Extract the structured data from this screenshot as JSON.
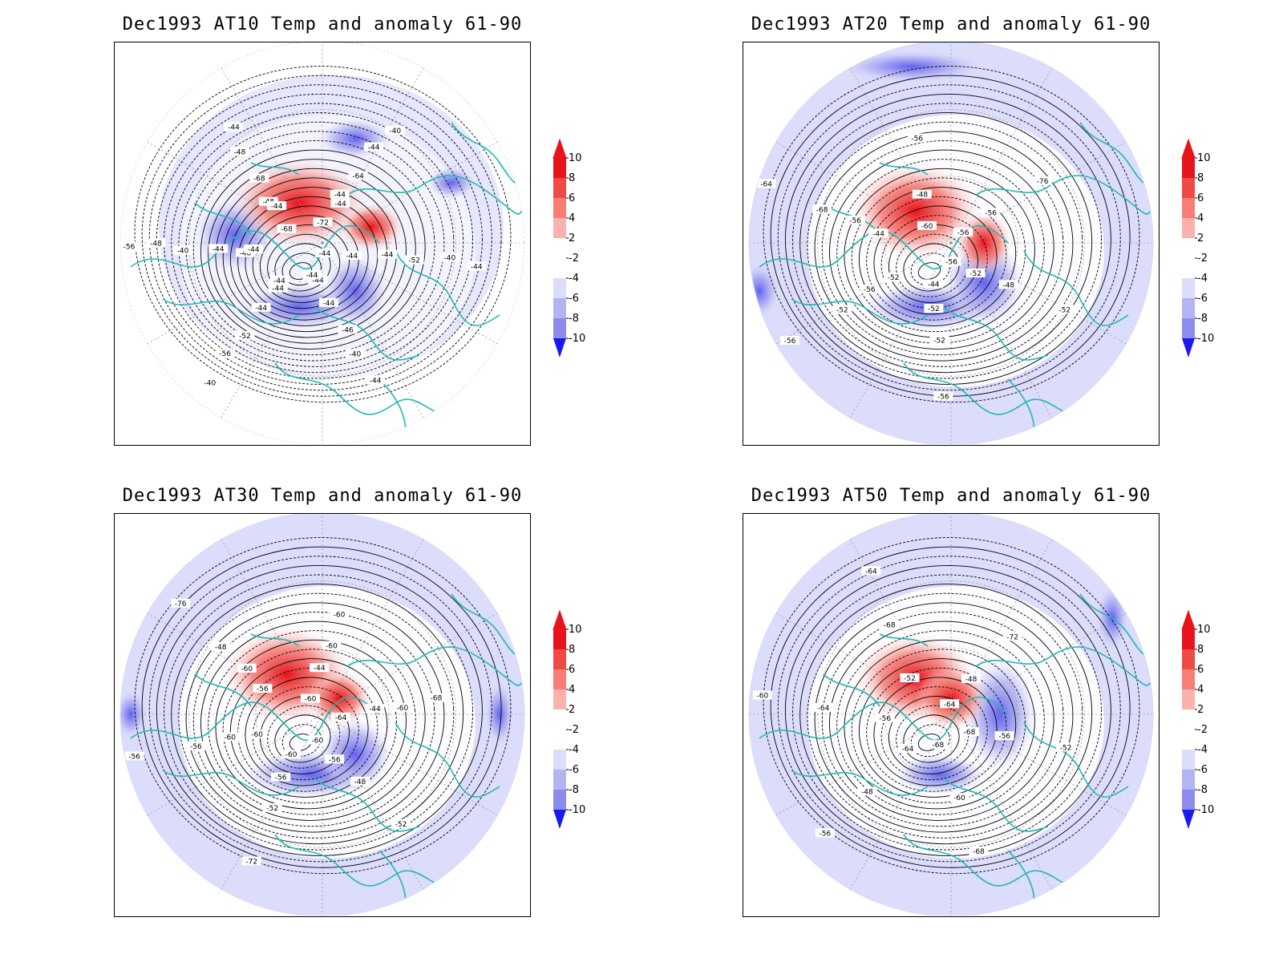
{
  "panels": [
    {
      "title": "Dec1993 AT10 Temp and anomaly 61-90",
      "has_limb": false,
      "contour_labels": [
        "-44",
        "-44",
        "-44",
        "-48",
        "-48",
        "-44",
        "-44",
        "-46",
        "-52",
        "-40",
        "-48",
        "-44",
        "-40",
        "-44",
        "-40",
        "-56",
        "-68",
        "-72",
        "-44",
        "-44",
        "-44",
        "-44",
        "-68",
        "-64",
        "-52",
        "-40",
        "-56",
        "-48",
        "-44",
        "-40",
        "-44",
        "-44",
        "-44",
        "-44",
        "-44",
        "-44"
      ]
    },
    {
      "title": "Dec1993 AT20 Temp and anomaly 61-90",
      "has_limb": true,
      "contour_labels": [
        "-56",
        "-44",
        "-52",
        "-44",
        "-48",
        "-56",
        "-48",
        "-52",
        "-52",
        "-68",
        "-56",
        "-76",
        "-52",
        "-56",
        "-56",
        "-64",
        "-60",
        "-56",
        "-52",
        "-52",
        "-56",
        "-56"
      ]
    },
    {
      "title": "Dec1993 AT30 Temp and anomaly 61-90",
      "has_limb": true,
      "contour_labels": [
        "-60",
        "-60",
        "-60",
        "-56",
        "-44",
        "-44",
        "-48",
        "-52",
        "-56",
        "-48",
        "-60",
        "-68",
        "-52",
        "-72",
        "-56",
        "-76",
        "-60",
        "-64",
        "-56",
        "-56",
        "-60",
        "-60",
        "-60",
        "-60"
      ]
    },
    {
      "title": "Dec1993 AT50 Temp and anomaly 61-90",
      "has_limb": true,
      "contour_labels": [
        "-68",
        "-64",
        "-56",
        "-52",
        "-48",
        "-56",
        "-60",
        "-48",
        "-64",
        "-68",
        "-72",
        "-52",
        "-68",
        "-56",
        "-60",
        "-64",
        "-64",
        "-68"
      ]
    }
  ],
  "colorbar": {
    "levels": [
      "10",
      "8",
      "6",
      "4",
      "2",
      "-2",
      "-4",
      "-6",
      "-8",
      "-10"
    ],
    "colors": [
      "#e8141b",
      "#f04a44",
      "#f77d76",
      "#fbb2ae",
      "#fde0de",
      "#ffffff",
      "#dcdcfb",
      "#b4b4f3",
      "#8c8cef",
      "#5a5aef",
      "#1a1aef"
    ]
  },
  "colors": {
    "coastline": "#22b8b4",
    "contour": "#000000",
    "warm_core": "#e8141b",
    "cold_core": "#5a5aef"
  }
}
